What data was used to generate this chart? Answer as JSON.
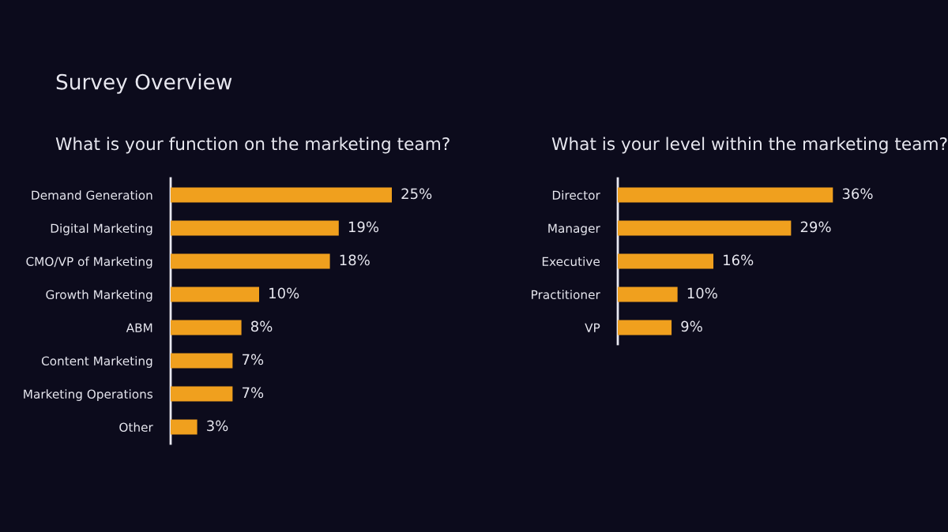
{
  "chart_data": [
    {
      "type": "bar",
      "orientation": "horizontal",
      "title": "What is your function on the marketing team?",
      "annotations": [
        "Survey Overview"
      ],
      "categories": [
        "Demand Generation",
        "Digital Marketing",
        "CMO/VP of Marketing",
        "Growth Marketing",
        "ABM",
        "Content Marketing",
        "Marketing Operations",
        "Other"
      ],
      "series": [
        {
          "color": "#f0a01e",
          "values": [
            25,
            19,
            18,
            10,
            8,
            7,
            7,
            3
          ],
          "value_labels": [
            "25%",
            "19%",
            "18%",
            "10%",
            "8%",
            "7%",
            "7%",
            "3%"
          ]
        }
      ],
      "grid": false,
      "legend": false
    },
    {
      "type": "bar",
      "orientation": "horizontal",
      "title": "What is your level within the marketing team?",
      "categories": [
        "Director",
        "Manager",
        "Executive",
        "Practitioner",
        "VP"
      ],
      "series": [
        {
          "color": "#f0a01e",
          "values": [
            36,
            29,
            16,
            10,
            9
          ],
          "value_labels": [
            "36%",
            "29%",
            "16%",
            "10%",
            "9%"
          ]
        }
      ],
      "grid": false,
      "legend": false
    }
  ]
}
